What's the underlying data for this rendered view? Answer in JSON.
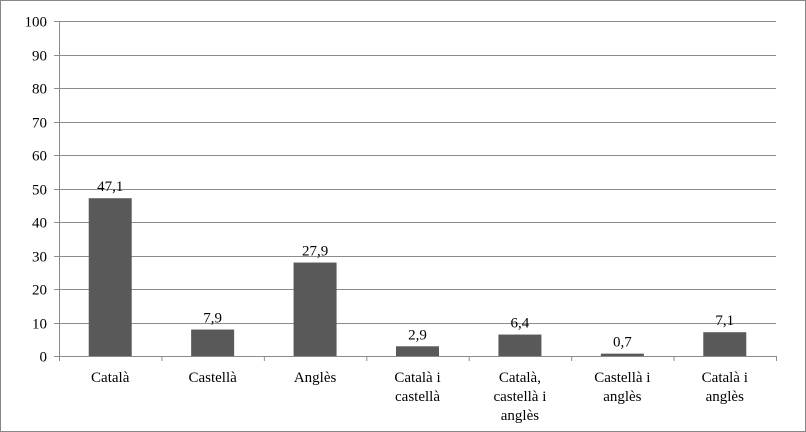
{
  "chart_data": {
    "type": "bar",
    "title": "",
    "xlabel": "",
    "ylabel": "",
    "ylim": [
      0,
      100
    ],
    "yticks": [
      0,
      10,
      20,
      30,
      40,
      50,
      60,
      70,
      80,
      90,
      100
    ],
    "grid": true,
    "legend": "none",
    "bar_color": "#595959",
    "gridline_color": "#8c8c8c",
    "categories": [
      [
        "Català"
      ],
      [
        "Castellà"
      ],
      [
        "Anglès"
      ],
      [
        "Català i",
        "castellà"
      ],
      [
        "Català,",
        "castellà i",
        "anglès"
      ],
      [
        "Castellà i",
        "anglès"
      ],
      [
        "Català i",
        "anglès"
      ]
    ],
    "values": [
      47.1,
      7.9,
      27.9,
      2.9,
      6.4,
      0.7,
      7.1
    ],
    "value_labels": [
      "47,1",
      "7,9",
      "27,9",
      "2,9",
      "6,4",
      "0,7",
      "7,1"
    ]
  }
}
